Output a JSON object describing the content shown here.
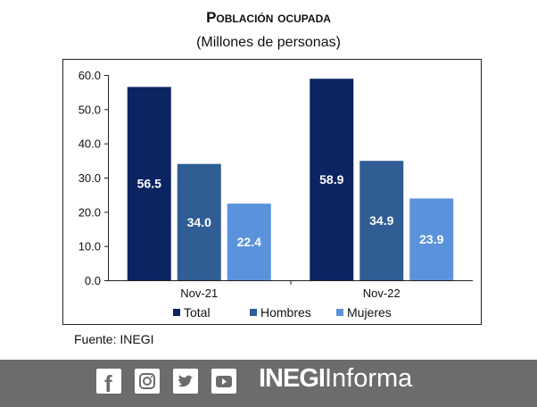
{
  "chart_data": {
    "type": "bar",
    "title": "Población ocupada",
    "subtitle": "(Millones de personas)",
    "categories": [
      "Nov-21",
      "Nov-22"
    ],
    "series": [
      {
        "name": "Total",
        "color": "#0c2461",
        "values": [
          56.5,
          58.9
        ]
      },
      {
        "name": "Hombres",
        "color": "#2f5d94",
        "values": [
          34.0,
          34.9
        ]
      },
      {
        "name": "Mujeres",
        "color": "#5a93dc",
        "values": [
          22.4,
          23.9
        ]
      }
    ],
    "ylim": [
      0,
      60
    ],
    "yticks": [
      "0.0",
      "10.0",
      "20.0",
      "30.0",
      "40.0",
      "50.0",
      "60.0"
    ],
    "grid": false,
    "legend": "bottom",
    "data_labels": true
  },
  "source": "Fuente: INEGI",
  "footer": {
    "icons": [
      "facebook-icon",
      "instagram-icon",
      "twitter-icon",
      "youtube-icon"
    ],
    "brand_bold": "INEGI",
    "brand_light": "Informa",
    "background": "#6b6c6e"
  }
}
